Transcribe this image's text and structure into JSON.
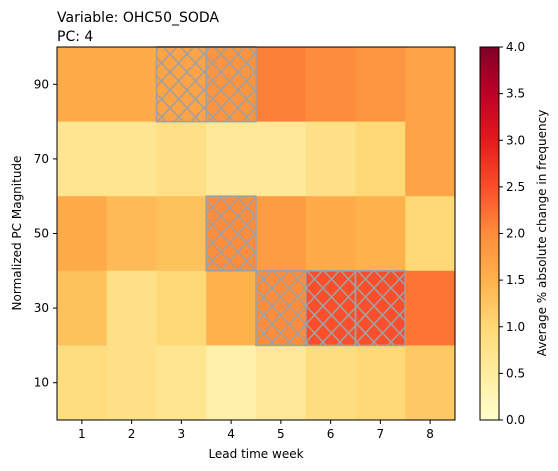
{
  "chart_data": {
    "type": "heatmap",
    "title": "Variable: OHC50_SODA",
    "subtitle": "PC: 4",
    "xlabel": "Lead time week",
    "ylabel": "Normalized PC Magnitude",
    "x_categories": [
      "1",
      "2",
      "3",
      "4",
      "5",
      "6",
      "7",
      "8"
    ],
    "y_categories": [
      "10",
      "30",
      "50",
      "70",
      "90"
    ],
    "colorbar": {
      "label": "Average % absolute change in frequency",
      "range": [
        0,
        4
      ],
      "ticks": [
        "0.0",
        "0.5",
        "1.0",
        "1.5",
        "2.0",
        "2.5",
        "3.0",
        "3.5",
        "4.0"
      ],
      "colormap": "YlOrRd"
    },
    "values": [
      [
        1.6,
        1.6,
        1.7,
        1.9,
        2.1,
        2.0,
        1.9,
        1.7
      ],
      [
        0.7,
        0.7,
        0.8,
        0.6,
        0.6,
        0.8,
        1.0,
        1.7
      ],
      [
        1.6,
        1.4,
        1.3,
        2.0,
        1.8,
        1.6,
        1.5,
        1.0
      ],
      [
        1.3,
        0.8,
        1.0,
        1.5,
        2.0,
        2.5,
        2.5,
        2.2
      ],
      [
        0.9,
        0.8,
        0.7,
        0.4,
        0.6,
        0.9,
        1.0,
        1.2
      ]
    ],
    "hatched": [
      [
        false,
        false,
        true,
        true,
        false,
        false,
        false,
        false
      ],
      [
        false,
        false,
        false,
        false,
        false,
        false,
        false,
        false
      ],
      [
        false,
        false,
        false,
        true,
        false,
        false,
        false,
        false
      ],
      [
        false,
        false,
        false,
        false,
        true,
        true,
        true,
        false
      ],
      [
        false,
        false,
        false,
        false,
        false,
        false,
        false,
        false
      ]
    ],
    "hatch_color": "#a0a0a0"
  }
}
